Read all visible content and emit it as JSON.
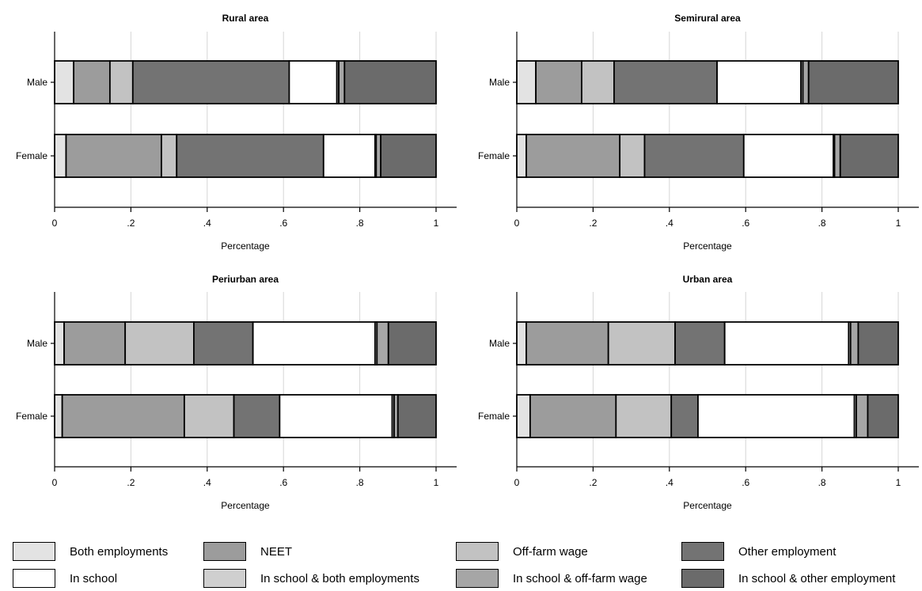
{
  "legend": [
    {
      "label": "Both employments",
      "color": "#e3e3e3"
    },
    {
      "label": "NEET",
      "color": "#9c9c9c"
    },
    {
      "label": "Off-farm wage",
      "color": "#c2c2c2"
    },
    {
      "label": "Other employment",
      "color": "#737373"
    },
    {
      "label": "In school",
      "color": "#ffffff"
    },
    {
      "label": "In school & both employments",
      "color": "#cfcfcf"
    },
    {
      "label": "In school & off-farm wage",
      "color": "#a6a6a6"
    },
    {
      "label": "In school & other employment",
      "color": "#6b6b6b"
    }
  ],
  "chart_data": [
    {
      "type": "bar",
      "orientation": "horizontal",
      "stacked": true,
      "title": "Rural area",
      "xlabel": "Percentage",
      "categories": [
        "Male",
        "Female"
      ],
      "xticks": [
        "0",
        ".2",
        ".4",
        ".6",
        ".8",
        "1"
      ],
      "xlim": [
        0,
        1
      ],
      "grid": true,
      "series": [
        {
          "name": "Both employments",
          "values": [
            0.05,
            0.03
          ],
          "color": "#e3e3e3"
        },
        {
          "name": "NEET",
          "values": [
            0.095,
            0.25
          ],
          "color": "#9c9c9c"
        },
        {
          "name": "Off-farm wage",
          "values": [
            0.06,
            0.04
          ],
          "color": "#c2c2c2"
        },
        {
          "name": "Other employment",
          "values": [
            0.41,
            0.385
          ],
          "color": "#737373"
        },
        {
          "name": "In school",
          "values": [
            0.125,
            0.135
          ],
          "color": "#ffffff"
        },
        {
          "name": "In school & both employments",
          "values": [
            0.005,
            0.003
          ],
          "color": "#cfcfcf"
        },
        {
          "name": "In school & off-farm wage",
          "values": [
            0.015,
            0.012
          ],
          "color": "#a6a6a6"
        },
        {
          "name": "In school & other employment",
          "values": [
            0.24,
            0.145
          ],
          "color": "#6b6b6b"
        }
      ]
    },
    {
      "type": "bar",
      "orientation": "horizontal",
      "stacked": true,
      "title": "Semirural area",
      "xlabel": "Percentage",
      "categories": [
        "Male",
        "Female"
      ],
      "xticks": [
        "0",
        ".2",
        ".4",
        ".6",
        ".8",
        "1"
      ],
      "xlim": [
        0,
        1
      ],
      "grid": true,
      "series": [
        {
          "name": "Both employments",
          "values": [
            0.05,
            0.025
          ],
          "color": "#e3e3e3"
        },
        {
          "name": "NEET",
          "values": [
            0.12,
            0.245
          ],
          "color": "#9c9c9c"
        },
        {
          "name": "Off-farm wage",
          "values": [
            0.085,
            0.065
          ],
          "color": "#c2c2c2"
        },
        {
          "name": "Other employment",
          "values": [
            0.27,
            0.26
          ],
          "color": "#737373"
        },
        {
          "name": "In school",
          "values": [
            0.22,
            0.235
          ],
          "color": "#ffffff"
        },
        {
          "name": "In school & both employments",
          "values": [
            0.005,
            0.003
          ],
          "color": "#cfcfcf"
        },
        {
          "name": "In school & off-farm wage",
          "values": [
            0.015,
            0.015
          ],
          "color": "#a6a6a6"
        },
        {
          "name": "In school & other employment",
          "values": [
            0.235,
            0.152
          ],
          "color": "#6b6b6b"
        }
      ]
    },
    {
      "type": "bar",
      "orientation": "horizontal",
      "stacked": true,
      "title": "Periurban area",
      "xlabel": "Percentage",
      "categories": [
        "Male",
        "Female"
      ],
      "xticks": [
        "0",
        ".2",
        ".4",
        ".6",
        ".8",
        "1"
      ],
      "xlim": [
        0,
        1
      ],
      "grid": true,
      "series": [
        {
          "name": "Both employments",
          "values": [
            0.025,
            0.02
          ],
          "color": "#e3e3e3"
        },
        {
          "name": "NEET",
          "values": [
            0.16,
            0.32
          ],
          "color": "#9c9c9c"
        },
        {
          "name": "Off-farm wage",
          "values": [
            0.18,
            0.13
          ],
          "color": "#c2c2c2"
        },
        {
          "name": "Other employment",
          "values": [
            0.155,
            0.12
          ],
          "color": "#737373"
        },
        {
          "name": "In school",
          "values": [
            0.32,
            0.295
          ],
          "color": "#ffffff"
        },
        {
          "name": "In school & both employments",
          "values": [
            0.005,
            0.005
          ],
          "color": "#cfcfcf"
        },
        {
          "name": "In school & off-farm wage",
          "values": [
            0.03,
            0.01
          ],
          "color": "#a6a6a6"
        },
        {
          "name": "In school & other employment",
          "values": [
            0.125,
            0.1
          ],
          "color": "#6b6b6b"
        }
      ]
    },
    {
      "type": "bar",
      "orientation": "horizontal",
      "stacked": true,
      "title": "Urban area",
      "xlabel": "Percentage",
      "categories": [
        "Male",
        "Female"
      ],
      "xticks": [
        "0",
        ".2",
        ".4",
        ".6",
        ".8",
        "1"
      ],
      "xlim": [
        0,
        1
      ],
      "grid": true,
      "series": [
        {
          "name": "Both employments",
          "values": [
            0.025,
            0.035
          ],
          "color": "#e3e3e3"
        },
        {
          "name": "NEET",
          "values": [
            0.215,
            0.225
          ],
          "color": "#9c9c9c"
        },
        {
          "name": "Off-farm wage",
          "values": [
            0.175,
            0.145
          ],
          "color": "#c2c2c2"
        },
        {
          "name": "Other employment",
          "values": [
            0.13,
            0.07
          ],
          "color": "#737373"
        },
        {
          "name": "In school",
          "values": [
            0.325,
            0.41
          ],
          "color": "#ffffff"
        },
        {
          "name": "In school & both employments",
          "values": [
            0.005,
            0.005
          ],
          "color": "#cfcfcf"
        },
        {
          "name": "In school & off-farm wage",
          "values": [
            0.02,
            0.03
          ],
          "color": "#a6a6a6"
        },
        {
          "name": "In school & other employment",
          "values": [
            0.105,
            0.08
          ],
          "color": "#6b6b6b"
        }
      ]
    }
  ]
}
